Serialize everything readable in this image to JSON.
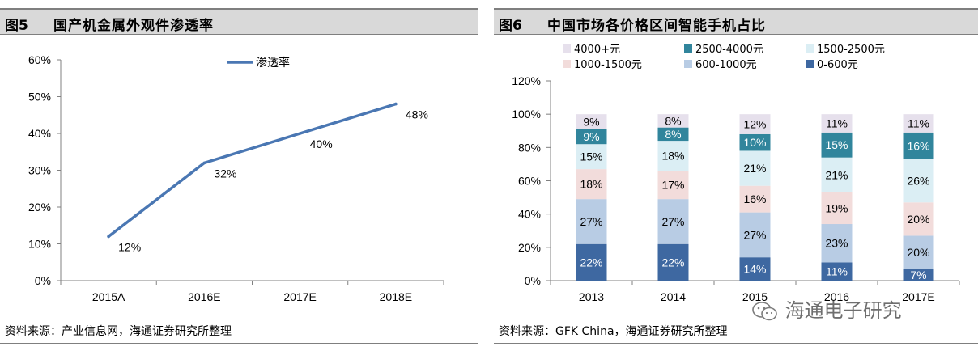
{
  "charts": [
    {
      "fig_no": "图5",
      "title": "国产机金属外观件渗透率",
      "source": "资料来源：产业信息网，海通证券研究所整理"
    },
    {
      "fig_no": "图6",
      "title": "中国市场各价格区间智能手机占比",
      "source": "资料来源：GFK China，海通证券研究所整理"
    }
  ],
  "watermark": "海通电子研究",
  "chart_data": [
    {
      "type": "line",
      "title": "国产机金属外观件渗透率",
      "categories": [
        "2015A",
        "2016E",
        "2017E",
        "2018E"
      ],
      "series": [
        {
          "name": "渗透率",
          "values": [
            12,
            32,
            40,
            48
          ],
          "labels": [
            "12%",
            "32%",
            "40%",
            "48%"
          ],
          "color": "#4a77b3"
        }
      ],
      "ylim": [
        0,
        60
      ],
      "yticks": [
        "0%",
        "10%",
        "20%",
        "30%",
        "40%",
        "50%",
        "60%"
      ],
      "ytick_values": [
        0,
        10,
        20,
        30,
        40,
        50,
        60
      ],
      "legend": "top-center",
      "grid": false
    },
    {
      "type": "bar",
      "stacked": true,
      "title": "中国市场各价格区间智能手机占比",
      "categories": [
        "2013",
        "2014",
        "2015",
        "2016",
        "2017E"
      ],
      "series": [
        {
          "name": "0-600元",
          "values": [
            22,
            22,
            14,
            11,
            7
          ],
          "labels": [
            "22%",
            "22%",
            "14%",
            "11%",
            "7%"
          ],
          "color": "#3e68a1",
          "label_color": "#ffffff"
        },
        {
          "name": "600-1000元",
          "values": [
            27,
            27,
            27,
            23,
            20
          ],
          "labels": [
            "27%",
            "27%",
            "27%",
            "23%",
            "20%"
          ],
          "color": "#b8cce4",
          "label_color": "#000000"
        },
        {
          "name": "1000-1500元",
          "values": [
            18,
            17,
            16,
            19,
            20
          ],
          "labels": [
            "18%",
            "17%",
            "16%",
            "19%",
            "20%"
          ],
          "color": "#f2dcdb",
          "label_color": "#000000"
        },
        {
          "name": "1500-2500元",
          "values": [
            15,
            18,
            21,
            21,
            26
          ],
          "labels": [
            "15%",
            "18%",
            "21%",
            "21%",
            "26%"
          ],
          "color": "#dbeef4",
          "label_color": "#000000"
        },
        {
          "name": "2500-4000元",
          "values": [
            9,
            8,
            10,
            15,
            16
          ],
          "labels": [
            "9%",
            "8%",
            "10%",
            "15%",
            "16%"
          ],
          "color": "#31859c",
          "label_color": "#ffffff"
        },
        {
          "name": "4000+元",
          "values": [
            9,
            8,
            12,
            11,
            11
          ],
          "labels": [
            "9%",
            "8%",
            "12%",
            "11%",
            "11%"
          ],
          "color": "#e6e0ec",
          "label_color": "#000000"
        }
      ],
      "legend_order": [
        "4000+元",
        "2500-4000元",
        "1500-2500元",
        "1000-1500元",
        "600-1000元",
        "0-600元"
      ],
      "ylim": [
        0,
        120
      ],
      "yticks": [
        "0%",
        "20%",
        "40%",
        "60%",
        "80%",
        "100%",
        "120%"
      ],
      "ytick_values": [
        0,
        20,
        40,
        60,
        80,
        100,
        120
      ],
      "legend": "top",
      "grid": false
    }
  ]
}
